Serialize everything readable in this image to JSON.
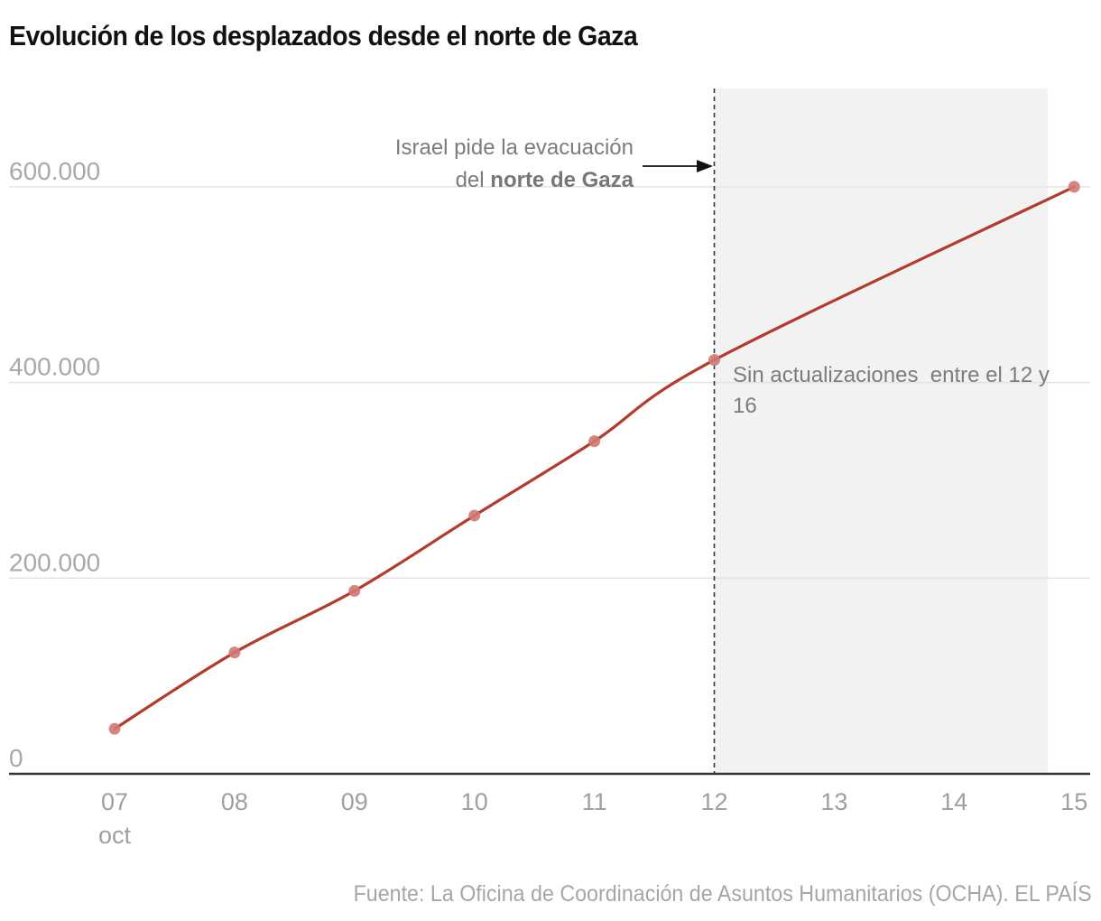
{
  "title": "Evolución de los desplazados desde el norte de Gaza",
  "source": "Fuente: La Oficina de Coordinación de Asuntos Humanitarios (OCHA). EL PAÍS",
  "colors": {
    "line": "#b33b2b",
    "marker": "#cf7a72",
    "shade": "#f2f2f2",
    "grid": "#e3e3e3",
    "axis": "#333333",
    "event_line": "#2d3748"
  },
  "chart_data": {
    "type": "line",
    "title": "Evolución de los desplazados desde el norte de Gaza",
    "xlabel": "",
    "ylabel": "",
    "x_unit_label": "oct",
    "x": [
      7,
      8,
      9,
      10,
      11,
      12,
      15
    ],
    "x_labels": [
      "07",
      "08",
      "09",
      "10",
      "11",
      "12",
      "15"
    ],
    "x_ticks": [
      {
        "value": 7,
        "label": "07",
        "sublabel": "oct"
      },
      {
        "value": 8,
        "label": "08"
      },
      {
        "value": 9,
        "label": "09"
      },
      {
        "value": 10,
        "label": "10"
      },
      {
        "value": 11,
        "label": "11"
      },
      {
        "value": 12,
        "label": "12"
      },
      {
        "value": 13,
        "label": "13"
      },
      {
        "value": 14,
        "label": "14"
      },
      {
        "value": 15,
        "label": "15"
      }
    ],
    "series": [
      {
        "name": "Desplazados",
        "values": [
          46000,
          124000,
          187000,
          264000,
          340000,
          423000,
          600000
        ]
      }
    ],
    "y_ticks": [
      {
        "value": 0,
        "label": "0"
      },
      {
        "value": 200000,
        "label": "200.000"
      },
      {
        "value": 400000,
        "label": "400.000"
      },
      {
        "value": 600000,
        "label": "600.000"
      }
    ],
    "xlim": [
      6,
      15.15
    ],
    "ylim": [
      0,
      700000
    ],
    "grid": true,
    "legend": "none",
    "annotations": [
      {
        "type": "vline",
        "x": 12,
        "style": "dashed",
        "text_line1": "Israel pide la evacuación",
        "text_line2_prefix": "del ",
        "text_line2_bold": "norte de Gaza",
        "arrow": "right"
      },
      {
        "type": "shaded_region",
        "x_start": 12,
        "x_end": 14.78,
        "text_line1": "Sin actualizaciones  entre el 12 y",
        "text_line2": "16"
      }
    ]
  }
}
